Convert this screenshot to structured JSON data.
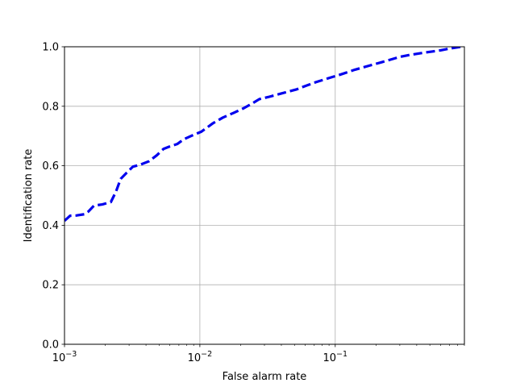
{
  "chart_data": {
    "type": "line",
    "xlabel": "False alarm rate",
    "ylabel": "Identification rate",
    "xscale": "log",
    "xlim": [
      0.001,
      0.9
    ],
    "ylim": [
      0.0,
      1.0
    ],
    "grid": true,
    "x_ticks": [
      {
        "value": 0.001,
        "base": "10",
        "exp": "−3"
      },
      {
        "value": 0.01,
        "base": "10",
        "exp": "−2"
      },
      {
        "value": 0.1,
        "base": "10",
        "exp": "−1"
      }
    ],
    "y_ticks": [
      {
        "value": 0.0,
        "label": "0.0"
      },
      {
        "value": 0.2,
        "label": "0.2"
      },
      {
        "value": 0.4,
        "label": "0.4"
      },
      {
        "value": 0.6,
        "label": "0.6"
      },
      {
        "value": 0.8,
        "label": "0.8"
      },
      {
        "value": 1.0,
        "label": "1.0"
      }
    ],
    "series": [
      {
        "color": "#0000ee",
        "line_style": "dashed",
        "x": [
          0.001,
          0.0011,
          0.00123,
          0.0014,
          0.0015,
          0.00165,
          0.0019,
          0.0022,
          0.0024,
          0.0026,
          0.0029,
          0.0032,
          0.0036,
          0.0042,
          0.0048,
          0.0054,
          0.006,
          0.0068,
          0.0076,
          0.0088,
          0.0102,
          0.0112,
          0.0125,
          0.0148,
          0.0178,
          0.021,
          0.0245,
          0.0275,
          0.032,
          0.04,
          0.052,
          0.06,
          0.072,
          0.09,
          0.11,
          0.14,
          0.18,
          0.22,
          0.3,
          0.36,
          0.45,
          0.6,
          0.72,
          0.85
        ],
        "y": [
          0.415,
          0.432,
          0.433,
          0.437,
          0.446,
          0.466,
          0.47,
          0.478,
          0.513,
          0.556,
          0.578,
          0.597,
          0.603,
          0.615,
          0.635,
          0.657,
          0.665,
          0.673,
          0.689,
          0.702,
          0.714,
          0.727,
          0.743,
          0.762,
          0.778,
          0.793,
          0.81,
          0.824,
          0.831,
          0.843,
          0.857,
          0.868,
          0.881,
          0.895,
          0.907,
          0.923,
          0.937,
          0.948,
          0.966,
          0.973,
          0.98,
          0.988,
          0.995,
          1.0
        ]
      }
    ]
  }
}
